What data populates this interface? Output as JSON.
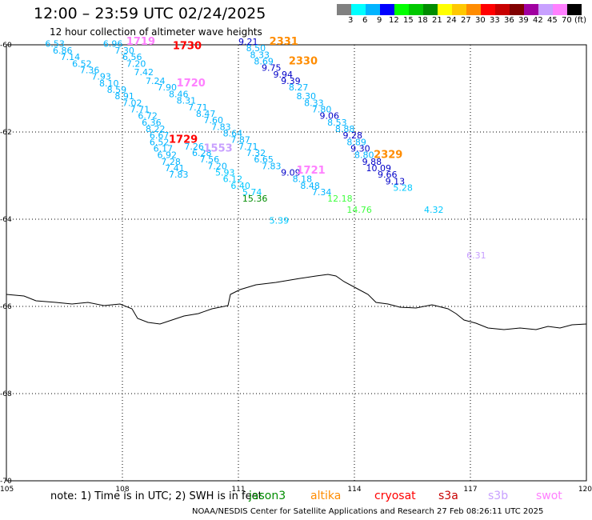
{
  "title": "12:00 – 23:59 UTC 02/24/2025",
  "subtitle": "12 hour collection of altimeter wave heights",
  "colorbar": {
    "unit": "(ft)",
    "colors": [
      "#808080",
      "#00ffff",
      "#00b4ff",
      "#0000ff",
      "#00ff00",
      "#00c800",
      "#008c00",
      "#ffff00",
      "#ffc800",
      "#ff8c00",
      "#ff0000",
      "#c80000",
      "#800000",
      "#a000a0",
      "#c8a0ff",
      "#ff80ff",
      "#000000"
    ],
    "labels": [
      "3",
      "6",
      "9",
      "12",
      "15",
      "18",
      "21",
      "24",
      "27",
      "30",
      "33",
      "36",
      "39",
      "42",
      "45",
      "70"
    ]
  },
  "axes": {
    "lon_labels": [
      "105",
      "108",
      "111",
      "114",
      "117",
      "120"
    ],
    "lat_labels": [
      "-60",
      "-62",
      "-64",
      "-66",
      "-68",
      "-70"
    ]
  },
  "map_data": {
    "lon_range": [
      105,
      120
    ],
    "lat_range": [
      -60,
      -70
    ],
    "values": [
      {
        "t": "6.53",
        "lon": 106.0,
        "lat": -60.05,
        "c": "#00b4ff"
      },
      {
        "t": "6.86",
        "lon": 106.2,
        "lat": -60.2,
        "c": "#00b4ff"
      },
      {
        "t": "7.14",
        "lon": 106.4,
        "lat": -60.35,
        "c": "#00b4ff"
      },
      {
        "t": "6.52",
        "lon": 106.7,
        "lat": -60.5,
        "c": "#00b4ff"
      },
      {
        "t": "7.36",
        "lon": 106.9,
        "lat": -60.65,
        "c": "#00b4ff"
      },
      {
        "t": "7.93",
        "lon": 107.2,
        "lat": -60.8,
        "c": "#00b4ff"
      },
      {
        "t": "8.10",
        "lon": 107.4,
        "lat": -60.95,
        "c": "#00b4ff"
      },
      {
        "t": "8.59",
        "lon": 107.6,
        "lat": -61.1,
        "c": "#00b4ff"
      },
      {
        "t": "8.91",
        "lon": 107.8,
        "lat": -61.25,
        "c": "#00b4ff"
      },
      {
        "t": "7.02",
        "lon": 108.0,
        "lat": -61.4,
        "c": "#00b4ff"
      },
      {
        "t": "7.71",
        "lon": 108.2,
        "lat": -61.55,
        "c": "#00b4ff"
      },
      {
        "t": "6.72",
        "lon": 108.4,
        "lat": -61.7,
        "c": "#00b4ff"
      },
      {
        "t": "6.36",
        "lon": 108.5,
        "lat": -61.85,
        "c": "#00b4ff"
      },
      {
        "t": "8.22",
        "lon": 108.6,
        "lat": -62.0,
        "c": "#00b4ff"
      },
      {
        "t": "6.67",
        "lon": 108.7,
        "lat": -62.15,
        "c": "#00b4ff"
      },
      {
        "t": "6.52",
        "lon": 108.7,
        "lat": -62.3,
        "c": "#00b4ff"
      },
      {
        "t": "6.17",
        "lon": 108.8,
        "lat": -62.45,
        "c": "#00b4ff"
      },
      {
        "t": "6.92",
        "lon": 108.9,
        "lat": -62.6,
        "c": "#00b4ff"
      },
      {
        "t": "7.28",
        "lon": 109.0,
        "lat": -62.75,
        "c": "#00b4ff"
      },
      {
        "t": "7.41",
        "lon": 109.1,
        "lat": -62.9,
        "c": "#00b4ff"
      },
      {
        "t": "7.83",
        "lon": 109.2,
        "lat": -63.05,
        "c": "#00b4ff"
      },
      {
        "t": "6.96",
        "lon": 107.5,
        "lat": -60.05,
        "c": "#00b4ff"
      },
      {
        "t": "7.30",
        "lon": 107.8,
        "lat": -60.2,
        "c": "#00b4ff"
      },
      {
        "t": "6.56",
        "lon": 108.0,
        "lat": -60.35,
        "c": "#00b4ff"
      },
      {
        "t": "7.20",
        "lon": 108.1,
        "lat": -60.5,
        "c": "#00b4ff"
      },
      {
        "t": "7.42",
        "lon": 108.3,
        "lat": -60.7,
        "c": "#00b4ff"
      },
      {
        "t": "7.24",
        "lon": 108.6,
        "lat": -60.9,
        "c": "#00b4ff"
      },
      {
        "t": "7.90",
        "lon": 108.9,
        "lat": -61.05,
        "c": "#00b4ff"
      },
      {
        "t": "8.46",
        "lon": 109.2,
        "lat": -61.2,
        "c": "#00b4ff"
      },
      {
        "t": "8.31",
        "lon": 109.4,
        "lat": -61.35,
        "c": "#00b4ff"
      },
      {
        "t": "7.71",
        "lon": 109.7,
        "lat": -61.5,
        "c": "#00b4ff"
      },
      {
        "t": "8.47",
        "lon": 109.9,
        "lat": -61.65,
        "c": "#00b4ff"
      },
      {
        "t": "7.60",
        "lon": 110.1,
        "lat": -61.8,
        "c": "#00b4ff"
      },
      {
        "t": "7.83",
        "lon": 110.3,
        "lat": -61.95,
        "c": "#00b4ff"
      },
      {
        "t": "8.64",
        "lon": 110.6,
        "lat": -62.1,
        "c": "#00b4ff"
      },
      {
        "t": "7.87",
        "lon": 110.8,
        "lat": -62.25,
        "c": "#00b4ff"
      },
      {
        "t": "7.71",
        "lon": 111.0,
        "lat": -62.4,
        "c": "#00b4ff"
      },
      {
        "t": "7.32",
        "lon": 111.2,
        "lat": -62.55,
        "c": "#00b4ff"
      },
      {
        "t": "6.65",
        "lon": 111.4,
        "lat": -62.7,
        "c": "#00b4ff"
      },
      {
        "t": "7.83",
        "lon": 111.6,
        "lat": -62.85,
        "c": "#00b4ff"
      },
      {
        "t": "7.26",
        "lon": 109.6,
        "lat": -62.4,
        "c": "#00b4ff"
      },
      {
        "t": "6.28",
        "lon": 109.8,
        "lat": -62.55,
        "c": "#00b4ff"
      },
      {
        "t": "7.56",
        "lon": 110.0,
        "lat": -62.7,
        "c": "#00b4ff"
      },
      {
        "t": "7.20",
        "lon": 110.2,
        "lat": -62.85,
        "c": "#00b4ff"
      },
      {
        "t": "5.93",
        "lon": 110.4,
        "lat": -63.0,
        "c": "#00c8ff"
      },
      {
        "t": "6.12",
        "lon": 110.6,
        "lat": -63.15,
        "c": "#00c8ff"
      },
      {
        "t": "6.40",
        "lon": 110.8,
        "lat": -63.3,
        "c": "#00c8ff"
      },
      {
        "t": "5.74",
        "lon": 111.1,
        "lat": -63.45,
        "c": "#00c8ff"
      },
      {
        "t": "15.36",
        "lon": 111.1,
        "lat": -63.6,
        "c": "#008c00"
      },
      {
        "t": "5.39",
        "lon": 111.8,
        "lat": -64.1,
        "c": "#00c8ff"
      },
      {
        "t": "9.09",
        "lon": 112.1,
        "lat": -63.0,
        "c": "#0000c8"
      },
      {
        "t": "8.18",
        "lon": 112.4,
        "lat": -63.15,
        "c": "#00b4ff"
      },
      {
        "t": "8.48",
        "lon": 112.6,
        "lat": -63.3,
        "c": "#00b4ff"
      },
      {
        "t": "7.34",
        "lon": 112.9,
        "lat": -63.45,
        "c": "#00b4ff"
      },
      {
        "t": "12.18",
        "lon": 113.3,
        "lat": -63.6,
        "c": "#40ff40"
      },
      {
        "t": "14.76",
        "lon": 113.8,
        "lat": -63.85,
        "c": "#40ff40"
      },
      {
        "t": "9.21",
        "lon": 111.0,
        "lat": -60.0,
        "c": "#0000c8"
      },
      {
        "t": "8.50",
        "lon": 111.2,
        "lat": -60.15,
        "c": "#00b4ff"
      },
      {
        "t": "8.33",
        "lon": 111.3,
        "lat": -60.3,
        "c": "#00b4ff"
      },
      {
        "t": "8.69",
        "lon": 111.4,
        "lat": -60.45,
        "c": "#00b4ff"
      },
      {
        "t": "9.75",
        "lon": 111.6,
        "lat": -60.6,
        "c": "#0000c8"
      },
      {
        "t": "9.94",
        "lon": 111.9,
        "lat": -60.75,
        "c": "#0000c8"
      },
      {
        "t": "9.39",
        "lon": 112.1,
        "lat": -60.9,
        "c": "#0000c8"
      },
      {
        "t": "8.27",
        "lon": 112.3,
        "lat": -61.05,
        "c": "#00b4ff"
      },
      {
        "t": "8.30",
        "lon": 112.5,
        "lat": -61.25,
        "c": "#00b4ff"
      },
      {
        "t": "8.33",
        "lon": 112.7,
        "lat": -61.4,
        "c": "#00b4ff"
      },
      {
        "t": "7.80",
        "lon": 112.9,
        "lat": -61.55,
        "c": "#00b4ff"
      },
      {
        "t": "9.06",
        "lon": 113.1,
        "lat": -61.7,
        "c": "#0000c8"
      },
      {
        "t": "8.53",
        "lon": 113.3,
        "lat": -61.85,
        "c": "#00b4ff"
      },
      {
        "t": "8.88",
        "lon": 113.5,
        "lat": -62.0,
        "c": "#00b4ff"
      },
      {
        "t": "9.28",
        "lon": 113.7,
        "lat": -62.15,
        "c": "#0000c8"
      },
      {
        "t": "8.89",
        "lon": 113.8,
        "lat": -62.3,
        "c": "#00b4ff"
      },
      {
        "t": "9.30",
        "lon": 113.9,
        "lat": -62.45,
        "c": "#0000c8"
      },
      {
        "t": "8.80",
        "lon": 114.0,
        "lat": -62.6,
        "c": "#00b4ff"
      },
      {
        "t": "9.88",
        "lon": 114.2,
        "lat": -62.75,
        "c": "#0000c8"
      },
      {
        "t": "10.09",
        "lon": 114.3,
        "lat": -62.9,
        "c": "#0000c8"
      },
      {
        "t": "9.66",
        "lon": 114.6,
        "lat": -63.05,
        "c": "#0000c8"
      },
      {
        "t": "9.13",
        "lon": 114.8,
        "lat": -63.2,
        "c": "#0000c8"
      },
      {
        "t": "5.28",
        "lon": 115.0,
        "lat": -63.35,
        "c": "#00c8ff"
      },
      {
        "t": "4.32",
        "lon": 115.8,
        "lat": -63.85,
        "c": "#00c8ff"
      },
      {
        "t": "6.31",
        "lon": 116.9,
        "lat": -64.9,
        "c": "#c8a0ff"
      }
    ],
    "times": [
      {
        "t": "1719",
        "lon": 108.1,
        "lat": -60.0,
        "c": "#ff80ff"
      },
      {
        "t": "1730",
        "lon": 109.3,
        "lat": -60.1,
        "c": "#ff0000"
      },
      {
        "t": "1720",
        "lon": 109.4,
        "lat": -60.95,
        "c": "#ff80ff"
      },
      {
        "t": "1729",
        "lon": 109.2,
        "lat": -62.25,
        "c": "#ff0000"
      },
      {
        "t": "1553",
        "lon": 110.1,
        "lat": -62.45,
        "c": "#c8a0ff"
      },
      {
        "t": "1721",
        "lon": 112.5,
        "lat": -62.95,
        "c": "#ff80ff"
      },
      {
        "t": "2331",
        "lon": 111.8,
        "lat": -60.0,
        "c": "#ff8c00"
      },
      {
        "t": "2330",
        "lon": 112.3,
        "lat": -60.45,
        "c": "#ff8c00"
      },
      {
        "t": "2329",
        "lon": 114.5,
        "lat": -62.6,
        "c": "#ff8c00"
      }
    ]
  },
  "footer": {
    "note": "note:  1)  Time is in UTC;  2)  SWH is in feet",
    "credit": "NOAA/NESDIS Center for Satellite Applications and Research    27 Feb 08:26:11 UTC 2025"
  },
  "legend": [
    {
      "name": "jason3",
      "color": "#008c00"
    },
    {
      "name": "altika",
      "color": "#ff8c00"
    },
    {
      "name": "cryosat",
      "color": "#ff0000"
    },
    {
      "name": "s3a",
      "color": "#c80000"
    },
    {
      "name": "s3b",
      "color": "#c8a0ff"
    },
    {
      "name": "swot",
      "color": "#ff80ff"
    }
  ]
}
